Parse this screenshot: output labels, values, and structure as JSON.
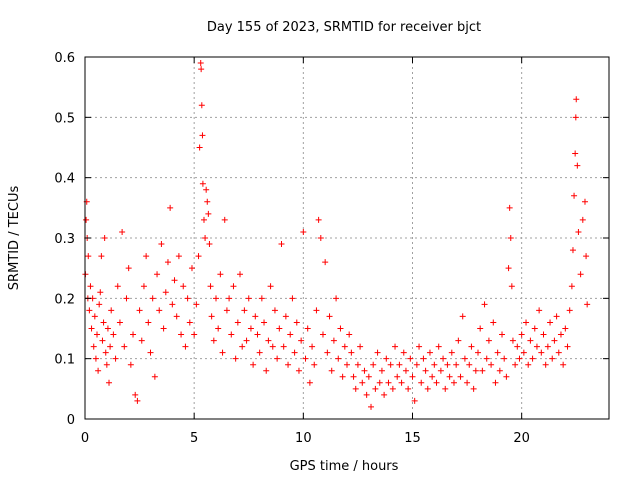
{
  "chart_data": {
    "type": "scatter",
    "title": "Day 155 of 2023, SRMTID for receiver bjct",
    "xlabel": "GPS time / hours",
    "ylabel": "SRMTID / TECUs",
    "xlim": [
      0,
      24
    ],
    "ylim": [
      0,
      0.6
    ],
    "x_ticks": [
      0,
      5,
      10,
      15,
      20
    ],
    "x_tick_labels": [
      "0",
      "5",
      "10",
      "15",
      "20"
    ],
    "y_ticks": [
      0,
      0.1,
      0.2,
      0.3,
      0.4,
      0.5,
      0.6
    ],
    "y_tick_labels": [
      "0",
      "0.1",
      "0.2",
      "0.3",
      "0.4",
      "0.5",
      "0.6"
    ],
    "grid": true,
    "marker": "plus",
    "color": "#ff0000",
    "series": [
      {
        "name": "SRMTID",
        "points": [
          [
            0.02,
            0.24
          ],
          [
            0.05,
            0.33
          ],
          [
            0.08,
            0.36
          ],
          [
            0.1,
            0.3
          ],
          [
            0.13,
            0.2
          ],
          [
            0.15,
            0.27
          ],
          [
            0.2,
            0.18
          ],
          [
            0.25,
            0.22
          ],
          [
            0.3,
            0.15
          ],
          [
            0.35,
            0.2
          ],
          [
            0.4,
            0.12
          ],
          [
            0.45,
            0.17
          ],
          [
            0.5,
            0.1
          ],
          [
            0.55,
            0.14
          ],
          [
            0.6,
            0.08
          ],
          [
            0.65,
            0.19
          ],
          [
            0.7,
            0.21
          ],
          [
            0.75,
            0.27
          ],
          [
            0.8,
            0.13
          ],
          [
            0.85,
            0.16
          ],
          [
            0.9,
            0.3
          ],
          [
            0.95,
            0.11
          ],
          [
            1.0,
            0.09
          ],
          [
            1.05,
            0.15
          ],
          [
            1.1,
            0.06
          ],
          [
            1.15,
            0.12
          ],
          [
            1.2,
            0.18
          ],
          [
            1.3,
            0.14
          ],
          [
            1.4,
            0.1
          ],
          [
            1.5,
            0.22
          ],
          [
            1.6,
            0.16
          ],
          [
            1.7,
            0.31
          ],
          [
            1.8,
            0.12
          ],
          [
            1.9,
            0.2
          ],
          [
            2.0,
            0.25
          ],
          [
            2.1,
            0.09
          ],
          [
            2.2,
            0.14
          ],
          [
            2.3,
            0.04
          ],
          [
            2.4,
            0.03
          ],
          [
            2.5,
            0.18
          ],
          [
            2.6,
            0.13
          ],
          [
            2.7,
            0.22
          ],
          [
            2.8,
            0.27
          ],
          [
            2.9,
            0.16
          ],
          [
            3.0,
            0.11
          ],
          [
            3.1,
            0.2
          ],
          [
            3.2,
            0.07
          ],
          [
            3.3,
            0.24
          ],
          [
            3.4,
            0.18
          ],
          [
            3.5,
            0.29
          ],
          [
            3.6,
            0.15
          ],
          [
            3.7,
            0.21
          ],
          [
            3.8,
            0.26
          ],
          [
            3.9,
            0.35
          ],
          [
            4.0,
            0.19
          ],
          [
            4.1,
            0.23
          ],
          [
            4.2,
            0.17
          ],
          [
            4.3,
            0.27
          ],
          [
            4.4,
            0.14
          ],
          [
            4.5,
            0.22
          ],
          [
            4.6,
            0.12
          ],
          [
            4.7,
            0.2
          ],
          [
            4.8,
            0.16
          ],
          [
            4.9,
            0.25
          ],
          [
            5.0,
            0.14
          ],
          [
            5.1,
            0.19
          ],
          [
            5.2,
            0.27
          ],
          [
            5.25,
            0.45
          ],
          [
            5.3,
            0.59
          ],
          [
            5.32,
            0.58
          ],
          [
            5.35,
            0.52
          ],
          [
            5.38,
            0.47
          ],
          [
            5.4,
            0.39
          ],
          [
            5.45,
            0.33
          ],
          [
            5.5,
            0.3
          ],
          [
            5.55,
            0.38
          ],
          [
            5.6,
            0.36
          ],
          [
            5.65,
            0.34
          ],
          [
            5.7,
            0.29
          ],
          [
            5.75,
            0.22
          ],
          [
            5.8,
            0.17
          ],
          [
            5.9,
            0.13
          ],
          [
            6.0,
            0.2
          ],
          [
            6.1,
            0.15
          ],
          [
            6.2,
            0.24
          ],
          [
            6.3,
            0.11
          ],
          [
            6.4,
            0.33
          ],
          [
            6.5,
            0.18
          ],
          [
            6.6,
            0.2
          ],
          [
            6.7,
            0.14
          ],
          [
            6.8,
            0.22
          ],
          [
            6.9,
            0.1
          ],
          [
            7.0,
            0.16
          ],
          [
            7.1,
            0.24
          ],
          [
            7.2,
            0.12
          ],
          [
            7.3,
            0.18
          ],
          [
            7.4,
            0.13
          ],
          [
            7.5,
            0.2
          ],
          [
            7.6,
            0.15
          ],
          [
            7.7,
            0.09
          ],
          [
            7.8,
            0.17
          ],
          [
            7.9,
            0.14
          ],
          [
            8.0,
            0.11
          ],
          [
            8.1,
            0.2
          ],
          [
            8.2,
            0.16
          ],
          [
            8.3,
            0.08
          ],
          [
            8.4,
            0.13
          ],
          [
            8.5,
            0.22
          ],
          [
            8.6,
            0.12
          ],
          [
            8.7,
            0.18
          ],
          [
            8.8,
            0.1
          ],
          [
            8.9,
            0.15
          ],
          [
            9.0,
            0.29
          ],
          [
            9.1,
            0.12
          ],
          [
            9.2,
            0.17
          ],
          [
            9.3,
            0.09
          ],
          [
            9.4,
            0.14
          ],
          [
            9.5,
            0.2
          ],
          [
            9.6,
            0.11
          ],
          [
            9.7,
            0.16
          ],
          [
            9.8,
            0.08
          ],
          [
            9.9,
            0.13
          ],
          [
            10.0,
            0.31
          ],
          [
            10.1,
            0.1
          ],
          [
            10.2,
            0.15
          ],
          [
            10.3,
            0.06
          ],
          [
            10.4,
            0.12
          ],
          [
            10.5,
            0.09
          ],
          [
            10.6,
            0.18
          ],
          [
            10.7,
            0.33
          ],
          [
            10.8,
            0.3
          ],
          [
            10.9,
            0.14
          ],
          [
            11.0,
            0.26
          ],
          [
            11.1,
            0.11
          ],
          [
            11.2,
            0.17
          ],
          [
            11.3,
            0.08
          ],
          [
            11.4,
            0.13
          ],
          [
            11.5,
            0.2
          ],
          [
            11.6,
            0.1
          ],
          [
            11.7,
            0.15
          ],
          [
            11.8,
            0.07
          ],
          [
            11.9,
            0.12
          ],
          [
            12.0,
            0.09
          ],
          [
            12.1,
            0.14
          ],
          [
            12.2,
            0.11
          ],
          [
            12.3,
            0.07
          ],
          [
            12.4,
            0.05
          ],
          [
            12.5,
            0.09
          ],
          [
            12.6,
            0.12
          ],
          [
            12.7,
            0.06
          ],
          [
            12.8,
            0.08
          ],
          [
            12.9,
            0.04
          ],
          [
            13.0,
            0.07
          ],
          [
            13.1,
            0.02
          ],
          [
            13.2,
            0.09
          ],
          [
            13.3,
            0.05
          ],
          [
            13.4,
            0.11
          ],
          [
            13.5,
            0.06
          ],
          [
            13.6,
            0.08
          ],
          [
            13.7,
            0.04
          ],
          [
            13.8,
            0.1
          ],
          [
            13.9,
            0.06
          ],
          [
            14.0,
            0.09
          ],
          [
            14.1,
            0.05
          ],
          [
            14.2,
            0.12
          ],
          [
            14.3,
            0.07
          ],
          [
            14.4,
            0.09
          ],
          [
            14.5,
            0.06
          ],
          [
            14.6,
            0.11
          ],
          [
            14.7,
            0.08
          ],
          [
            14.8,
            0.05
          ],
          [
            14.9,
            0.1
          ],
          [
            15.0,
            0.07
          ],
          [
            15.1,
            0.03
          ],
          [
            15.2,
            0.09
          ],
          [
            15.3,
            0.12
          ],
          [
            15.4,
            0.06
          ],
          [
            15.5,
            0.1
          ],
          [
            15.6,
            0.08
          ],
          [
            15.7,
            0.05
          ],
          [
            15.8,
            0.11
          ],
          [
            15.9,
            0.07
          ],
          [
            16.0,
            0.09
          ],
          [
            16.1,
            0.06
          ],
          [
            16.2,
            0.12
          ],
          [
            16.3,
            0.08
          ],
          [
            16.4,
            0.1
          ],
          [
            16.5,
            0.05
          ],
          [
            16.6,
            0.09
          ],
          [
            16.7,
            0.07
          ],
          [
            16.8,
            0.11
          ],
          [
            16.9,
            0.06
          ],
          [
            17.0,
            0.09
          ],
          [
            17.1,
            0.13
          ],
          [
            17.2,
            0.07
          ],
          [
            17.3,
            0.17
          ],
          [
            17.4,
            0.1
          ],
          [
            17.5,
            0.06
          ],
          [
            17.6,
            0.09
          ],
          [
            17.7,
            0.12
          ],
          [
            17.8,
            0.05
          ],
          [
            17.9,
            0.08
          ],
          [
            18.0,
            0.11
          ],
          [
            18.1,
            0.15
          ],
          [
            18.2,
            0.08
          ],
          [
            18.3,
            0.19
          ],
          [
            18.4,
            0.1
          ],
          [
            18.5,
            0.13
          ],
          [
            18.6,
            0.09
          ],
          [
            18.7,
            0.16
          ],
          [
            18.8,
            0.06
          ],
          [
            18.9,
            0.11
          ],
          [
            19.0,
            0.08
          ],
          [
            19.1,
            0.14
          ],
          [
            19.2,
            0.1
          ],
          [
            19.3,
            0.07
          ],
          [
            19.4,
            0.25
          ],
          [
            19.45,
            0.35
          ],
          [
            19.5,
            0.3
          ],
          [
            19.55,
            0.22
          ],
          [
            19.6,
            0.13
          ],
          [
            19.7,
            0.09
          ],
          [
            19.8,
            0.12
          ],
          [
            19.9,
            0.1
          ],
          [
            20.0,
            0.14
          ],
          [
            20.1,
            0.11
          ],
          [
            20.2,
            0.16
          ],
          [
            20.3,
            0.09
          ],
          [
            20.4,
            0.13
          ],
          [
            20.5,
            0.1
          ],
          [
            20.6,
            0.15
          ],
          [
            20.7,
            0.12
          ],
          [
            20.8,
            0.18
          ],
          [
            20.9,
            0.11
          ],
          [
            21.0,
            0.14
          ],
          [
            21.1,
            0.09
          ],
          [
            21.2,
            0.12
          ],
          [
            21.3,
            0.16
          ],
          [
            21.4,
            0.1
          ],
          [
            21.5,
            0.13
          ],
          [
            21.6,
            0.17
          ],
          [
            21.7,
            0.11
          ],
          [
            21.8,
            0.14
          ],
          [
            21.9,
            0.09
          ],
          [
            22.0,
            0.15
          ],
          [
            22.1,
            0.12
          ],
          [
            22.2,
            0.18
          ],
          [
            22.3,
            0.22
          ],
          [
            22.35,
            0.28
          ],
          [
            22.4,
            0.37
          ],
          [
            22.45,
            0.44
          ],
          [
            22.48,
            0.5
          ],
          [
            22.5,
            0.53
          ],
          [
            22.55,
            0.42
          ],
          [
            22.6,
            0.31
          ],
          [
            22.7,
            0.24
          ],
          [
            22.8,
            0.33
          ],
          [
            22.9,
            0.36
          ],
          [
            22.95,
            0.27
          ],
          [
            23.0,
            0.19
          ]
        ]
      }
    ]
  }
}
